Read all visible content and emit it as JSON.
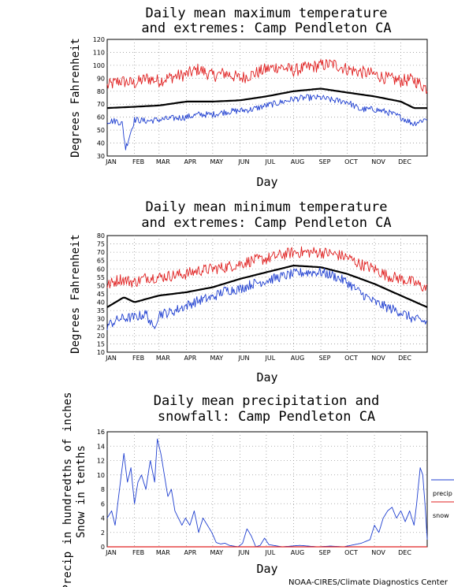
{
  "credit": "NOAA-CIRES/Climate Diagnostics Center",
  "colors": {
    "max": "#e02020",
    "min": "#1f3fd0",
    "mean": "#000000",
    "precip": "#1f3fd0",
    "snow": "#e02020"
  },
  "chart_data": [
    {
      "type": "line",
      "title_line1": "Daily mean maximum temperature",
      "title_line2": "and extremes: Camp Pendleton CA",
      "xlabel": "Day",
      "ylabel": "Degrees Fahrenheit",
      "ylim": [
        30,
        120
      ],
      "yticks": [
        30,
        40,
        50,
        60,
        70,
        80,
        90,
        100,
        110,
        120
      ],
      "months": [
        "JAN",
        "FEB",
        "MAR",
        "APR",
        "MAY",
        "JUN",
        "JUL",
        "AUG",
        "SEP",
        "OCT",
        "NOV",
        "DEC"
      ],
      "grid": true,
      "series": [
        {
          "role": "extreme-max",
          "x": [
            1,
            15,
            32,
            46,
            60,
            74,
            91,
            105,
            121,
            135,
            152,
            166,
            182,
            196,
            213,
            227,
            244,
            258,
            274,
            288,
            305,
            319,
            335,
            349,
            365
          ],
          "values": [
            84,
            88,
            86,
            90,
            88,
            91,
            93,
            97,
            92,
            94,
            90,
            93,
            97,
            99,
            96,
            98,
            100,
            101,
            97,
            95,
            93,
            90,
            88,
            89,
            82
          ]
        },
        {
          "role": "mean",
          "x": [
            1,
            32,
            60,
            91,
            121,
            152,
            182,
            213,
            244,
            274,
            305,
            335,
            350,
            365
          ],
          "values": [
            67,
            68,
            69,
            72,
            72,
            73,
            76,
            80,
            82,
            79,
            76,
            72,
            67,
            67
          ]
        },
        {
          "role": "extreme-min",
          "x": [
            1,
            12,
            18,
            22,
            32,
            46,
            60,
            74,
            91,
            105,
            121,
            135,
            152,
            166,
            182,
            196,
            213,
            227,
            244,
            258,
            274,
            288,
            305,
            319,
            335,
            349,
            365
          ],
          "values": [
            57,
            57,
            55,
            36,
            58,
            57,
            58,
            59,
            60,
            62,
            62,
            64,
            65,
            66,
            69,
            71,
            74,
            75,
            75,
            73,
            72,
            66,
            66,
            64,
            60,
            55,
            59
          ]
        }
      ]
    },
    {
      "type": "line",
      "title_line1": "Daily mean minimum temperature",
      "title_line2": "and extremes: Camp Pendleton CA",
      "xlabel": "Day",
      "ylabel": "Degrees Fahrenheit",
      "ylim": [
        10,
        80
      ],
      "yticks": [
        10,
        15,
        20,
        25,
        30,
        35,
        40,
        45,
        50,
        55,
        60,
        65,
        70,
        75,
        80
      ],
      "months": [
        "JAN",
        "FEB",
        "MAR",
        "APR",
        "MAY",
        "JUN",
        "JUL",
        "AUG",
        "SEP",
        "OCT",
        "NOV",
        "DEC"
      ],
      "grid": true,
      "series": [
        {
          "role": "extreme-max",
          "x": [
            1,
            15,
            32,
            46,
            60,
            74,
            91,
            105,
            121,
            135,
            152,
            166,
            182,
            196,
            213,
            227,
            244,
            258,
            274,
            288,
            305,
            319,
            335,
            349,
            365
          ],
          "values": [
            50,
            54,
            52,
            55,
            55,
            56,
            57,
            59,
            60,
            61,
            63,
            65,
            66,
            68,
            70,
            70,
            70,
            69,
            67,
            63,
            60,
            56,
            54,
            52,
            48
          ]
        },
        {
          "role": "mean",
          "x": [
            1,
            20,
            32,
            60,
            91,
            121,
            152,
            182,
            213,
            244,
            274,
            305,
            335,
            365
          ],
          "values": [
            37,
            43,
            40,
            44,
            46,
            49,
            54,
            58,
            62,
            61,
            57,
            51,
            44,
            37
          ]
        },
        {
          "role": "extreme-min",
          "x": [
            1,
            15,
            32,
            46,
            53,
            60,
            74,
            91,
            105,
            121,
            135,
            152,
            166,
            182,
            196,
            213,
            227,
            244,
            258,
            274,
            288,
            305,
            319,
            335,
            349,
            365
          ],
          "values": [
            26,
            30,
            31,
            33,
            24,
            33,
            34,
            38,
            41,
            43,
            47,
            48,
            51,
            53,
            55,
            57,
            58,
            58,
            56,
            52,
            46,
            40,
            37,
            34,
            30,
            28
          ]
        }
      ]
    },
    {
      "type": "line",
      "title_line1": "Daily mean precipitation and",
      "title_line2": "snowfall: Camp Pendleton CA",
      "xlabel": "Day",
      "ylabel_line1": "Precip in hundredths of inches",
      "ylabel_line2": "Snow in tenths",
      "ylim": [
        0,
        16
      ],
      "yticks": [
        0,
        2,
        4,
        6,
        8,
        10,
        12,
        14,
        16
      ],
      "months": [
        "JAN",
        "FEB",
        "MAR",
        "APR",
        "MAY",
        "JUN",
        "JUL",
        "AUG",
        "SEP",
        "OCT",
        "NOV",
        "DEC"
      ],
      "grid": true,
      "legend": [
        {
          "name": "precip",
          "color_key": "precip"
        },
        {
          "name": "snow",
          "color_key": "snow"
        }
      ],
      "legend_placement": "right",
      "series": [
        {
          "role": "precip",
          "x": [
            1,
            6,
            10,
            15,
            20,
            24,
            28,
            32,
            36,
            40,
            45,
            50,
            55,
            58,
            62,
            66,
            70,
            74,
            78,
            82,
            86,
            90,
            95,
            100,
            105,
            110,
            115,
            120,
            125,
            130,
            135,
            140,
            145,
            150,
            155,
            160,
            165,
            170,
            175,
            180,
            185,
            200,
            220,
            240,
            255,
            270,
            290,
            300,
            305,
            310,
            315,
            320,
            325,
            330,
            335,
            340,
            345,
            350,
            353,
            357,
            360,
            363,
            365
          ],
          "values": [
            4,
            5,
            3,
            8,
            13,
            9,
            11,
            6,
            9,
            10,
            8,
            12,
            9,
            15,
            13,
            10,
            7,
            8,
            5,
            4,
            3,
            4,
            3,
            5,
            2,
            4,
            3,
            2,
            0.6,
            0.4,
            0.5,
            0.2,
            0.1,
            0,
            0.5,
            2.5,
            1.5,
            0,
            0.2,
            1.2,
            0.3,
            0,
            0.2,
            0,
            0.1,
            0,
            0.5,
            1,
            3,
            2,
            4,
            5,
            5.5,
            4,
            5,
            3.5,
            5,
            3,
            6,
            11,
            10,
            5,
            1
          ]
        },
        {
          "role": "snow",
          "x": [
            1,
            365
          ],
          "values": [
            0,
            0
          ]
        }
      ]
    }
  ]
}
